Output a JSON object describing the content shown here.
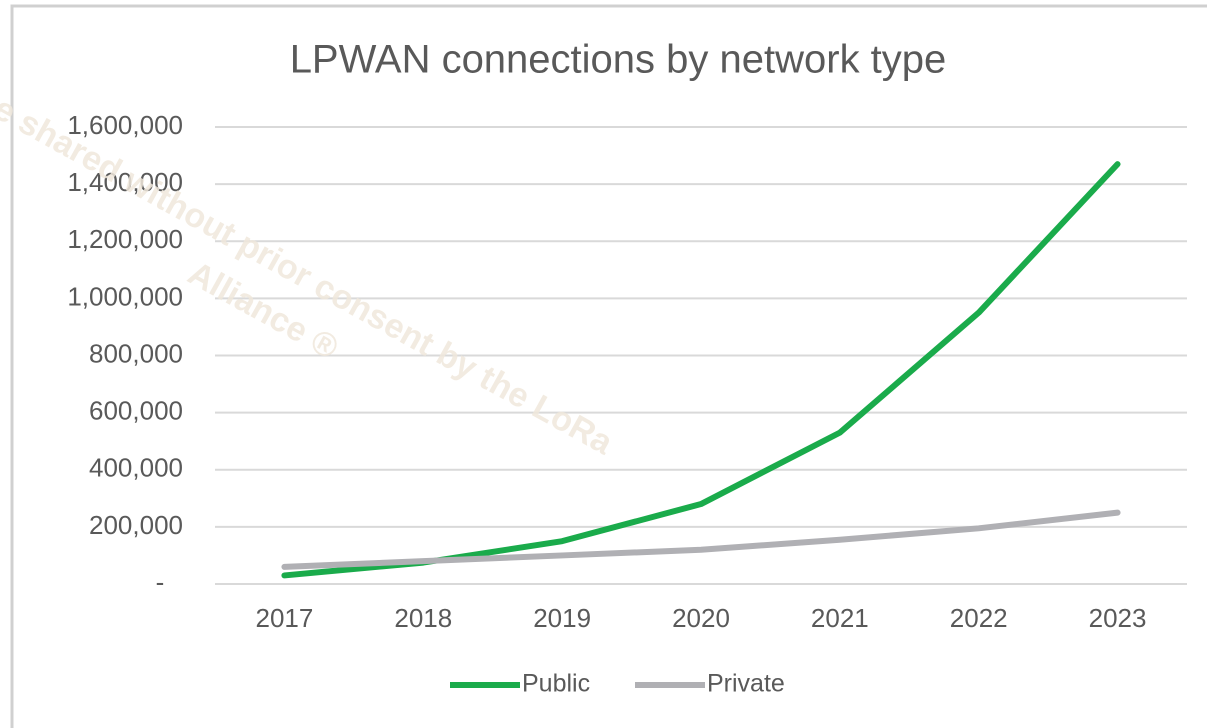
{
  "chart_data": {
    "type": "line",
    "title": "LPWAN connections by network type",
    "categories": [
      "2017",
      "2018",
      "2019",
      "2020",
      "2021",
      "2022",
      "2023"
    ],
    "series": [
      {
        "name": "Public",
        "color": "#1aab4b",
        "values": [
          30000,
          75000,
          150000,
          280000,
          530000,
          950000,
          1470000
        ]
      },
      {
        "name": "Private",
        "color": "#b0b0b4",
        "values": [
          60000,
          80000,
          100000,
          120000,
          155000,
          195000,
          250000
        ]
      }
    ],
    "ylim": [
      0,
      1600000
    ],
    "yticks": [
      {
        "value": 0,
        "label": "-"
      },
      {
        "value": 200000,
        "label": "200,000"
      },
      {
        "value": 400000,
        "label": "400,000"
      },
      {
        "value": 600000,
        "label": "600,000"
      },
      {
        "value": 800000,
        "label": "800,000"
      },
      {
        "value": 1000000,
        "label": "1,000,000"
      },
      {
        "value": 1200000,
        "label": "1,200,000"
      },
      {
        "value": 1400000,
        "label": "1,400,000"
      },
      {
        "value": 1600000,
        "label": "1,600,000"
      }
    ],
    "grid": true,
    "legend": "bottom",
    "annotations": [
      "e shared without prior consent by the LoRa",
      "Alliance ®"
    ]
  }
}
